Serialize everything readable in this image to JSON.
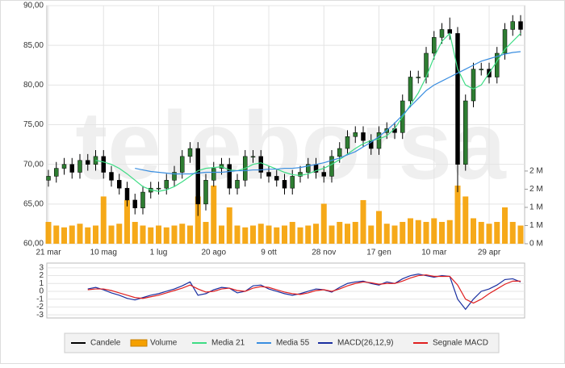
{
  "watermark": "teleborsa",
  "chart_data": [
    {
      "type": "candlestick",
      "name": "Candele",
      "color": "#000000",
      "up_color": "#2e7d32",
      "down_color": "#000000",
      "categories": [
        "21 mar",
        null,
        null,
        null,
        null,
        null,
        null,
        "10 mag",
        null,
        null,
        null,
        null,
        null,
        null,
        "1 lug",
        null,
        null,
        null,
        null,
        null,
        null,
        "20 ago",
        null,
        null,
        null,
        null,
        null,
        null,
        "9 ott",
        null,
        null,
        null,
        null,
        null,
        null,
        "28 nov",
        null,
        null,
        null,
        null,
        null,
        null,
        "17 gen",
        null,
        null,
        null,
        null,
        null,
        null,
        "10 mar",
        null,
        null,
        null,
        null,
        null,
        null,
        "29 apr",
        null,
        null,
        null,
        null
      ],
      "open": [
        68,
        68.5,
        69.5,
        70,
        69,
        70.5,
        70,
        71,
        69,
        68,
        67,
        65.5,
        64.5,
        66.5,
        67,
        67,
        68,
        69,
        71,
        72,
        65,
        68,
        69.5,
        70,
        67,
        68,
        71,
        71,
        69,
        68.5,
        68,
        67,
        68.5,
        69,
        70,
        69,
        68.5,
        71,
        72,
        73.5,
        74,
        73,
        72,
        74,
        74.5,
        74,
        78,
        81,
        81,
        84,
        86,
        87,
        86.5,
        70,
        78,
        82,
        82,
        81,
        84,
        87,
        88
      ],
      "high": [
        69.3,
        70.3,
        70.8,
        70.8,
        71.3,
        71.3,
        71.8,
        71.8,
        69.8,
        68.8,
        67.8,
        66.3,
        67.3,
        67.8,
        67.8,
        68.8,
        69.8,
        71.8,
        72.8,
        72.8,
        68.8,
        70.3,
        70.8,
        70.8,
        68.8,
        71.8,
        71.8,
        71.8,
        69.8,
        69.3,
        68.8,
        69.3,
        69.8,
        70.8,
        70.8,
        69.8,
        71.8,
        72.8,
        74.3,
        74.8,
        74.8,
        73.8,
        74.8,
        75.3,
        75.3,
        78.8,
        81.8,
        81.8,
        84.8,
        86.8,
        87.8,
        88.5,
        87.3,
        78.8,
        82.8,
        82.8,
        82.8,
        84.8,
        87.8,
        88.8,
        88.8
      ],
      "low": [
        67.2,
        67.7,
        68.7,
        68.2,
        68.2,
        69.2,
        69.2,
        68.2,
        67.2,
        66.2,
        64.7,
        63.7,
        63.7,
        65.7,
        66.2,
        66.2,
        67.2,
        68.2,
        70.2,
        63.5,
        64.2,
        67.2,
        68.7,
        66.2,
        66.2,
        67.2,
        70.2,
        68.2,
        67.7,
        67.2,
        66.2,
        66.2,
        67.7,
        68.2,
        68.2,
        67.7,
        67.7,
        70.2,
        71.2,
        72.7,
        72.2,
        71.2,
        71.2,
        73.2,
        73.2,
        73.2,
        77.2,
        80.2,
        80.2,
        83.2,
        85.2,
        85.7,
        66.5,
        69.2,
        77.2,
        81.2,
        80.2,
        80.2,
        83.2,
        86.2,
        86.2
      ],
      "close": [
        68.5,
        69.5,
        70,
        69,
        70.5,
        70,
        71,
        69,
        68,
        67,
        65.5,
        64.5,
        66.5,
        67,
        67,
        68,
        69,
        71,
        72,
        65,
        68,
        69.5,
        70,
        67,
        68,
        71,
        71,
        69,
        68.5,
        68,
        67,
        68.5,
        69,
        70,
        69,
        68.5,
        71,
        72,
        73.5,
        74,
        73,
        72,
        74,
        74.5,
        74,
        78,
        81,
        81,
        84,
        86,
        87,
        86.5,
        70,
        78,
        82,
        82,
        81,
        84,
        87,
        88,
        87
      ],
      "ylim": [
        60,
        90
      ],
      "yticks": [
        {
          "value": 60,
          "label": "60,00"
        },
        {
          "value": 65,
          "label": "65,00"
        },
        {
          "value": 70,
          "label": "70,00"
        },
        {
          "value": 75,
          "label": "75,00"
        },
        {
          "value": 80,
          "label": "80,00"
        },
        {
          "value": 85,
          "label": "85,00"
        },
        {
          "value": 90,
          "label": "90,00"
        }
      ],
      "y2lim": [
        0,
        6.55
      ],
      "y2ticks": [
        {
          "value": 0,
          "label": "0 M"
        },
        {
          "value": 0.5,
          "label": "1 M"
        },
        {
          "value": 1,
          "label": "1 M"
        },
        {
          "value": 1.5,
          "label": "2 M"
        },
        {
          "value": 2,
          "label": "2 M"
        }
      ],
      "grid": true,
      "series": [
        {
          "name": "Volume",
          "type": "bar",
          "axis": "y2",
          "color": "#f5a000",
          "values": [
            0.6,
            0.5,
            0.45,
            0.5,
            0.55,
            0.45,
            0.5,
            1.3,
            0.5,
            0.55,
            1.2,
            0.6,
            0.5,
            0.45,
            0.5,
            0.45,
            0.5,
            0.55,
            0.5,
            1.3,
            0.6,
            1.6,
            0.5,
            1.0,
            0.5,
            0.45,
            0.5,
            0.55,
            0.5,
            0.45,
            0.5,
            0.6,
            0.45,
            0.5,
            0.55,
            1.1,
            0.5,
            0.6,
            0.55,
            0.6,
            1.2,
            0.5,
            0.9,
            0.55,
            0.5,
            0.6,
            0.7,
            0.65,
            0.6,
            0.7,
            0.6,
            0.65,
            1.6,
            1.3,
            0.7,
            0.6,
            0.55,
            0.6,
            1.0,
            0.6,
            0.5
          ]
        },
        {
          "name": "Media 21",
          "type": "line",
          "color": "#3ddc84",
          "values": [
            null,
            null,
            null,
            null,
            null,
            null,
            70.5,
            70.3,
            70,
            69.5,
            68.8,
            68,
            67.2,
            66.8,
            66.6,
            66.8,
            67.2,
            67.8,
            68.5,
            69.2,
            69.5,
            69.6,
            69.7,
            69.3,
            69.2,
            69.5,
            70,
            70.2,
            69.8,
            69.4,
            69,
            68.7,
            68.6,
            68.8,
            69.2,
            69.5,
            70,
            70.6,
            71.3,
            72,
            72.6,
            73,
            73.2,
            73.6,
            74.5,
            76,
            77.5,
            79,
            81,
            83.5,
            85.5,
            86.5,
            82,
            80,
            79.5,
            80,
            81.5,
            83,
            84.5,
            85.5,
            86.5
          ]
        },
        {
          "name": "Media 55",
          "type": "line",
          "color": "#3a8ee0",
          "values": [
            null,
            null,
            null,
            null,
            null,
            null,
            null,
            null,
            null,
            null,
            null,
            69.5,
            69.3,
            69.1,
            69,
            68.9,
            68.8,
            68.8,
            68.8,
            68.9,
            69,
            69,
            69,
            69.1,
            69.2,
            69.2,
            69.3,
            69.3,
            69.4,
            69.4,
            69.5,
            69.5,
            69.6,
            69.8,
            70,
            70.2,
            70.5,
            70.8,
            71.2,
            71.6,
            72.2,
            72.8,
            73.5,
            74.3,
            75.2,
            76.2,
            77.3,
            78.3,
            79.3,
            80,
            80.5,
            81,
            81.5,
            82,
            82.5,
            83,
            83.3,
            83.6,
            83.9,
            84.1,
            84.2
          ]
        }
      ]
    },
    {
      "type": "line",
      "ylim": [
        -3.4,
        3.6
      ],
      "yticks": [
        3,
        2,
        1,
        0,
        -1,
        -2,
        -3
      ],
      "grid": true,
      "series": [
        {
          "name": "MACD(26,12,9)",
          "color": "#1a2fa0",
          "values": [
            null,
            null,
            null,
            null,
            null,
            0.3,
            0.5,
            0.2,
            -0.2,
            -0.5,
            -0.9,
            -1.1,
            -0.8,
            -0.5,
            -0.3,
            0,
            0.3,
            0.7,
            1.2,
            -0.5,
            -0.3,
            0.2,
            0.5,
            0.4,
            -0.2,
            0,
            0.7,
            0.8,
            0.3,
            0,
            -0.3,
            -0.5,
            -0.3,
            0,
            0.3,
            0.2,
            -0.1,
            0.5,
            1.0,
            1.2,
            1.3,
            1.0,
            0.8,
            1.2,
            1.0,
            1.6,
            2.0,
            2.2,
            2.0,
            1.8,
            2.0,
            1.9,
            -1.0,
            -2.3,
            -1.0,
            0,
            0.3,
            0.8,
            1.5,
            1.6,
            1.2
          ]
        },
        {
          "name": "Segnale MACD",
          "color": "#e02020",
          "values": [
            null,
            null,
            null,
            null,
            null,
            0.2,
            0.3,
            0.3,
            0.1,
            -0.2,
            -0.5,
            -0.8,
            -0.9,
            -0.7,
            -0.5,
            -0.2,
            0.1,
            0.4,
            0.8,
            0.3,
            -0.1,
            0,
            0.3,
            0.4,
            0.1,
            0,
            0.4,
            0.6,
            0.5,
            0.2,
            -0.1,
            -0.3,
            -0.4,
            -0.2,
            0.1,
            0.2,
            0,
            0.3,
            0.7,
            1,
            1.2,
            1.1,
            0.9,
            1.0,
            1.0,
            1.3,
            1.7,
            2.0,
            2.1,
            1.9,
            1.9,
            1.9,
            0.8,
            -1.0,
            -1.5,
            -1.0,
            -0.3,
            0.3,
            0.9,
            1.3,
            1.3
          ]
        }
      ]
    }
  ]
}
